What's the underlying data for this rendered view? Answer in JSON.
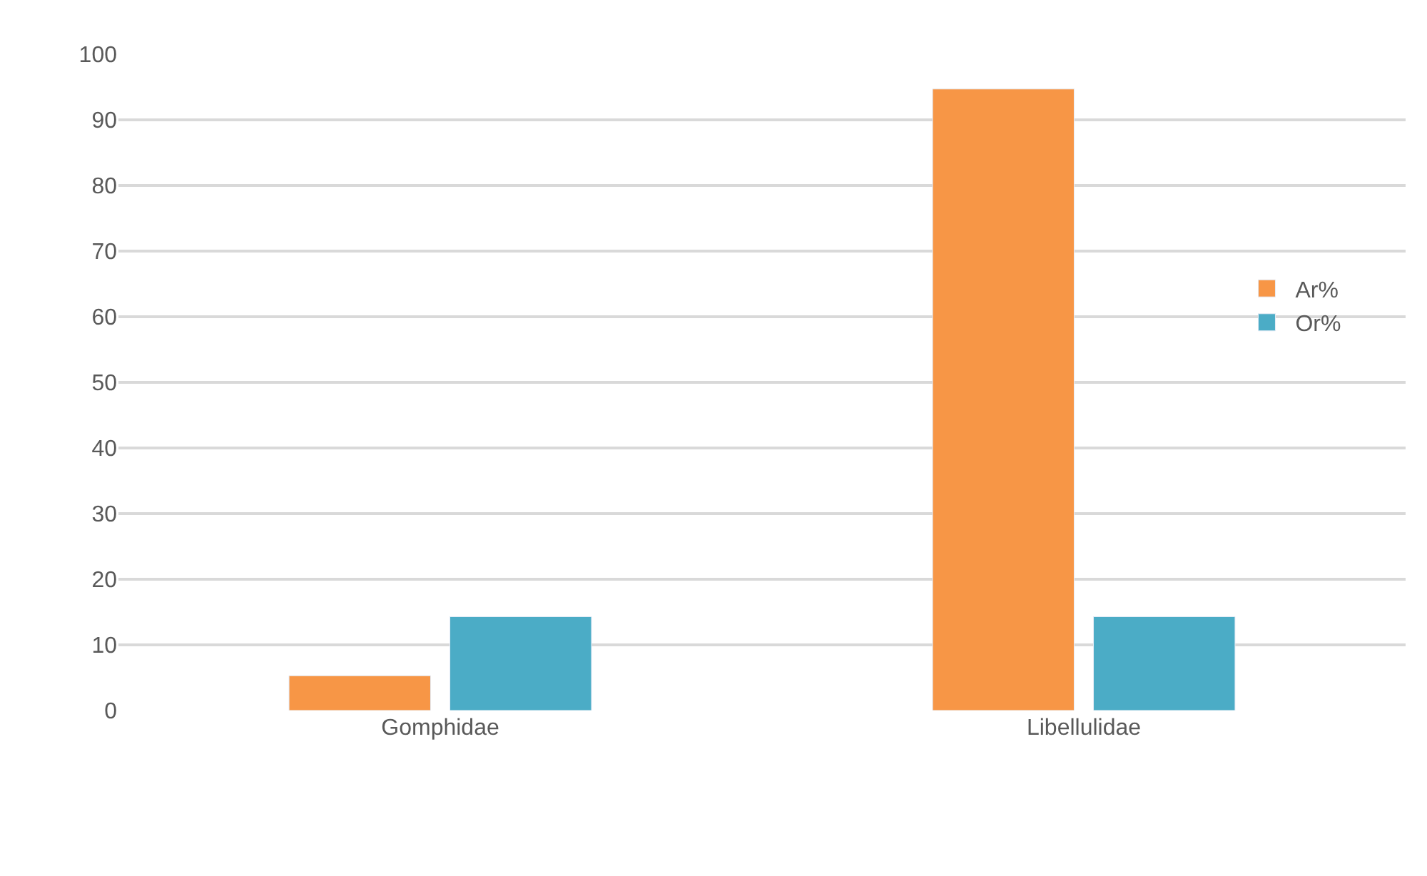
{
  "chart_data": {
    "type": "bar",
    "categories": [
      "Gomphidae",
      "Libellulidae"
    ],
    "series": [
      {
        "name": "Ar%",
        "color": "#f79646",
        "values": [
          5.3,
          94.7
        ]
      },
      {
        "name": "Or%",
        "color": "#4bacc6",
        "values": [
          14.3,
          14.3
        ]
      }
    ],
    "ylim": [
      0,
      100
    ],
    "yticks": [
      0,
      10,
      20,
      30,
      40,
      50,
      60,
      70,
      80,
      90,
      100
    ],
    "grid": "y",
    "legend": "right"
  }
}
